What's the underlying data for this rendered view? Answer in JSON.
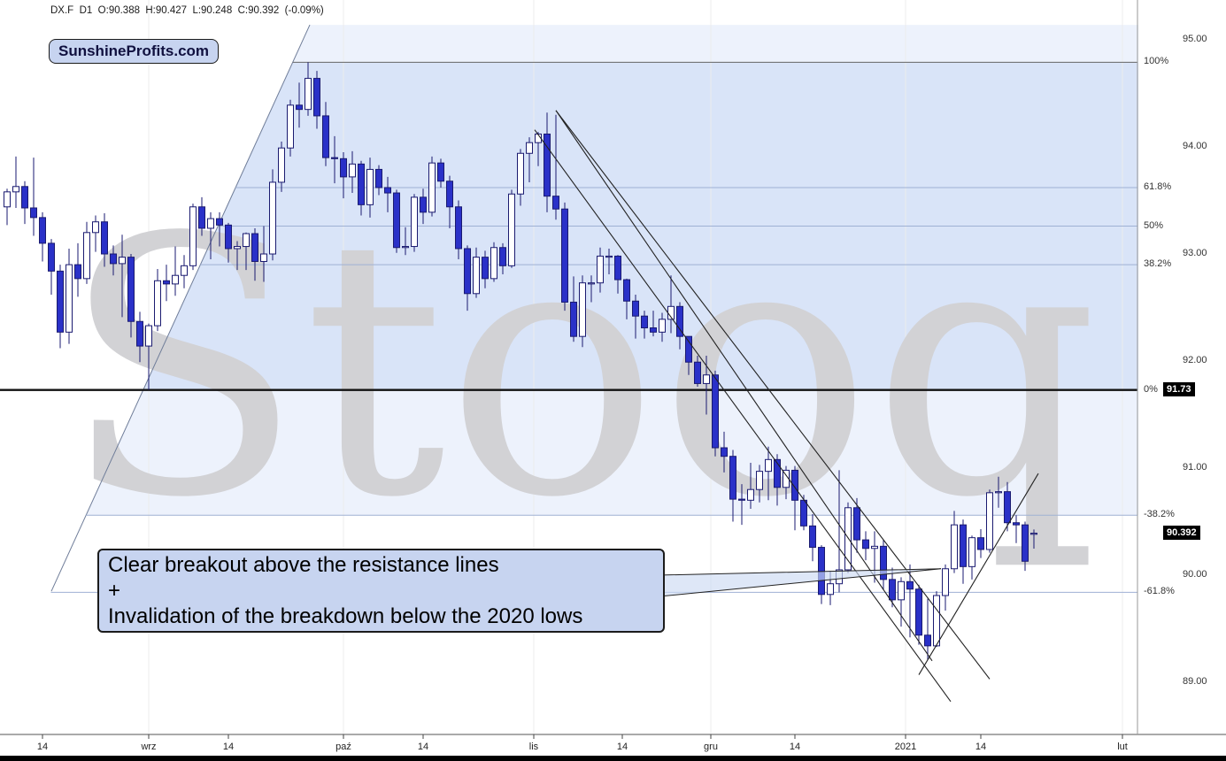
{
  "header": {
    "quote_line": "DX.F  D1  O:90.388  H:90.427  L:90.248  C:90.392  (-0.09%)"
  },
  "logo": {
    "text": "SunshineProfits.com"
  },
  "watermark": {
    "text": "Stooq"
  },
  "callout": {
    "line1": "Clear breakout above the resistance lines",
    "line2": "+",
    "line3": "Invalidation of the breakdown below the 2020 lows"
  },
  "y_axis": {
    "labels": [
      {
        "text": "95.00",
        "price": 95.0
      },
      {
        "text": "94.00",
        "price": 94.0
      },
      {
        "text": "93.00",
        "price": 93.0
      },
      {
        "text": "92.00",
        "price": 92.0
      },
      {
        "text": "91.00",
        "price": 91.0
      },
      {
        "text": "90.00",
        "price": 90.0
      },
      {
        "text": "89.00",
        "price": 89.0
      }
    ]
  },
  "price_badges": [
    {
      "text": "91.73",
      "price": 91.73
    },
    {
      "text": "90.392",
      "price": 90.392
    }
  ],
  "x_axis": {
    "ticks": [
      {
        "label": "14",
        "index": 4,
        "month": false
      },
      {
        "label": "wrz",
        "index": 16,
        "month": true
      },
      {
        "label": "14",
        "index": 25,
        "month": false
      },
      {
        "label": "paź",
        "index": 38,
        "month": true
      },
      {
        "label": "14",
        "index": 47,
        "month": false
      },
      {
        "label": "lis",
        "index": 59.5,
        "month": true
      },
      {
        "label": "14",
        "index": 69.5,
        "month": false
      },
      {
        "label": "gru",
        "index": 79.5,
        "month": true
      },
      {
        "label": "14",
        "index": 89,
        "month": false
      },
      {
        "label": "2021",
        "index": 101.5,
        "month": true
      },
      {
        "label": "14",
        "index": 110,
        "month": false
      },
      {
        "label": "lut",
        "index": 126,
        "month": true
      }
    ]
  },
  "chart_data": {
    "type": "candlestick",
    "symbol": "DX.F",
    "interval": "D1",
    "title": "DX.F US Dollar Index futures, daily candles, Aug 2020 - Jan 2021",
    "last_quote": {
      "open": 90.388,
      "high": 90.427,
      "low": 90.248,
      "close": 90.392,
      "change_pct": -0.09
    },
    "ylim": [
      88.5,
      95.37
    ],
    "colors": {
      "up_fill": "#ffffff",
      "down_fill": "#2a31c8",
      "outline": "#1a1a70",
      "fib_minor": "#9fb1d4",
      "fib_major": "#666666",
      "fib_zero": "#111111",
      "trendline": "#222222",
      "shade": "rgba(140,175,235,0.16)",
      "band": "rgba(130,168,232,0.18)",
      "watermark": "#d2d2d5"
    },
    "fib": {
      "high": 94.79,
      "low": 91.73,
      "levels": [
        {
          "label": "100%",
          "price": 94.79,
          "style": "major"
        },
        {
          "label": "61.8%",
          "price": 93.62,
          "style": "minor"
        },
        {
          "label": "50%",
          "price": 93.26,
          "style": "minor"
        },
        {
          "label": "38.2%",
          "price": 92.9,
          "style": "minor"
        },
        {
          "label": "0%",
          "price": 91.73,
          "style": "zero"
        },
        {
          "label": "-38.2%",
          "price": 90.56,
          "style": "minor"
        },
        {
          "label": "-61.8%",
          "price": 89.84,
          "style": "minor"
        }
      ]
    },
    "support_line": {
      "from": [
        5,
        89.85
      ],
      "to": [
        34.2,
        95.14
      ]
    },
    "shading": [
      {
        "name": "rising-wedge-area",
        "points": [
          [
            5,
            89.85
          ],
          [
            34.2,
            95.14
          ],
          [
            127.8,
            95.14
          ],
          [
            127.8,
            90.56
          ],
          [
            8.92,
            90.56
          ]
        ]
      },
      {
        "name": "fib-retracement-band",
        "points": [
          [
            15.4,
            91.73
          ],
          [
            32.3,
            94.79
          ],
          [
            127.8,
            94.79
          ],
          [
            127.8,
            91.73
          ]
        ]
      }
    ],
    "trendlines": [
      {
        "name": "resistance-line-1",
        "from": [
          59.6,
          94.16
        ],
        "to": [
          106.6,
          88.82
        ]
      },
      {
        "name": "resistance-line-2",
        "from": [
          62,
          94.34
        ],
        "to": [
          111,
          89.03
        ]
      },
      {
        "name": "resistance-line-3",
        "from": [
          62,
          94.34
        ],
        "to": [
          104.5,
          89.2
        ]
      },
      {
        "name": "rising-support-line",
        "from": [
          103,
          89.07
        ],
        "to": [
          116.5,
          90.95
        ]
      }
    ],
    "pointer": {
      "points": [
        [
          73.5,
          90.0
        ],
        [
          105.5,
          90.06
        ],
        [
          73.5,
          89.8
        ]
      ]
    },
    "candles": [
      [
        93.44,
        93.61,
        93.27,
        93.58
      ],
      [
        93.58,
        93.91,
        93.43,
        93.63
      ],
      [
        93.63,
        93.68,
        93.28,
        93.43
      ],
      [
        93.43,
        93.9,
        93.17,
        93.34
      ],
      [
        93.34,
        93.39,
        92.93,
        93.1
      ],
      [
        93.1,
        93.14,
        92.62,
        92.84
      ],
      [
        92.84,
        92.9,
        92.12,
        92.27
      ],
      [
        92.27,
        93.05,
        92.16,
        92.9
      ],
      [
        92.9,
        93.1,
        92.6,
        92.77
      ],
      [
        92.77,
        93.3,
        92.72,
        93.2
      ],
      [
        93.2,
        93.36,
        93.02,
        93.3
      ],
      [
        93.3,
        93.38,
        92.88,
        93.0
      ],
      [
        93.0,
        93.08,
        92.8,
        92.91
      ],
      [
        92.91,
        93.18,
        92.41,
        92.97
      ],
      [
        92.97,
        93.0,
        92.22,
        92.37
      ],
      [
        92.37,
        92.46,
        91.99,
        92.14
      ],
      [
        92.14,
        92.35,
        91.73,
        92.33
      ],
      [
        92.33,
        92.86,
        92.28,
        92.75
      ],
      [
        92.75,
        92.9,
        92.56,
        92.72
      ],
      [
        92.72,
        93.07,
        92.61,
        92.8
      ],
      [
        92.8,
        92.99,
        92.68,
        92.89
      ],
      [
        92.89,
        93.47,
        92.85,
        93.44
      ],
      [
        93.44,
        93.53,
        93.17,
        93.24
      ],
      [
        93.24,
        93.39,
        92.95,
        93.33
      ],
      [
        93.33,
        93.39,
        93.07,
        93.27
      ],
      [
        93.27,
        93.29,
        92.92,
        93.05
      ],
      [
        93.05,
        93.12,
        92.85,
        93.07
      ],
      [
        93.07,
        93.2,
        92.85,
        93.19
      ],
      [
        93.19,
        93.24,
        92.75,
        92.93
      ],
      [
        92.93,
        93.26,
        92.74,
        93.0
      ],
      [
        93.0,
        93.79,
        92.94,
        93.67
      ],
      [
        93.67,
        94.05,
        93.58,
        93.99
      ],
      [
        93.99,
        94.44,
        93.91,
        94.39
      ],
      [
        94.39,
        94.6,
        94.18,
        94.35
      ],
      [
        94.35,
        94.79,
        94.29,
        94.64
      ],
      [
        94.64,
        94.71,
        94.17,
        94.29
      ],
      [
        94.29,
        94.42,
        93.82,
        93.9
      ],
      [
        93.9,
        94.1,
        93.66,
        93.89
      ],
      [
        93.89,
        93.95,
        93.52,
        93.72
      ],
      [
        93.72,
        93.96,
        93.57,
        93.84
      ],
      [
        93.84,
        93.87,
        93.36,
        93.46
      ],
      [
        93.46,
        93.9,
        93.34,
        93.79
      ],
      [
        93.79,
        93.83,
        93.55,
        93.62
      ],
      [
        93.62,
        93.72,
        93.39,
        93.57
      ],
      [
        93.57,
        93.6,
        93.01,
        93.06
      ],
      [
        93.06,
        93.25,
        92.99,
        93.07
      ],
      [
        93.07,
        93.56,
        93.02,
        93.53
      ],
      [
        93.53,
        93.61,
        93.28,
        93.39
      ],
      [
        93.39,
        93.91,
        93.35,
        93.85
      ],
      [
        93.85,
        93.89,
        93.62,
        93.68
      ],
      [
        93.68,
        93.73,
        93.24,
        93.44
      ],
      [
        93.44,
        93.5,
        92.95,
        93.05
      ],
      [
        93.05,
        93.08,
        92.47,
        92.63
      ],
      [
        92.63,
        93.06,
        92.59,
        92.97
      ],
      [
        92.97,
        93.03,
        92.68,
        92.77
      ],
      [
        92.77,
        93.11,
        92.74,
        93.06
      ],
      [
        93.06,
        93.1,
        92.81,
        92.89
      ],
      [
        92.89,
        93.6,
        92.87,
        93.56
      ],
      [
        93.56,
        93.98,
        93.45,
        93.94
      ],
      [
        93.94,
        94.09,
        93.67,
        94.04
      ],
      [
        94.04,
        94.14,
        93.82,
        94.12
      ],
      [
        94.12,
        94.32,
        93.39,
        93.54
      ],
      [
        93.54,
        94.3,
        93.32,
        93.42
      ],
      [
        93.42,
        93.48,
        92.47,
        92.55
      ],
      [
        92.55,
        92.79,
        92.18,
        92.23
      ],
      [
        92.23,
        92.8,
        92.13,
        92.73
      ],
      [
        92.73,
        92.8,
        92.55,
        92.73
      ],
      [
        92.73,
        93.06,
        92.64,
        92.98
      ],
      [
        92.98,
        93.05,
        92.81,
        92.98
      ],
      [
        92.98,
        92.99,
        92.63,
        92.76
      ],
      [
        92.76,
        92.77,
        92.39,
        92.56
      ],
      [
        92.56,
        92.62,
        92.21,
        92.42
      ],
      [
        92.42,
        92.47,
        92.21,
        92.31
      ],
      [
        92.31,
        92.47,
        92.23,
        92.27
      ],
      [
        92.27,
        92.45,
        92.18,
        92.39
      ],
      [
        92.39,
        92.8,
        92.26,
        92.51
      ],
      [
        92.51,
        92.55,
        92.11,
        92.23
      ],
      [
        92.23,
        92.23,
        91.87,
        91.99
      ],
      [
        91.99,
        92.05,
        91.76,
        91.79
      ],
      [
        91.79,
        92.05,
        91.5,
        91.87
      ],
      [
        91.87,
        91.91,
        91.11,
        91.19
      ],
      [
        91.19,
        91.34,
        90.96,
        91.11
      ],
      [
        91.11,
        91.17,
        90.5,
        90.71
      ],
      [
        90.71,
        90.85,
        90.47,
        90.7
      ],
      [
        90.7,
        91.05,
        90.62,
        90.8
      ],
      [
        90.8,
        91.03,
        90.68,
        90.97
      ],
      [
        90.97,
        91.2,
        90.7,
        91.08
      ],
      [
        91.08,
        91.13,
        90.65,
        90.82
      ],
      [
        90.82,
        91.02,
        90.71,
        90.98
      ],
      [
        90.98,
        91.02,
        90.42,
        90.7
      ],
      [
        90.7,
        90.75,
        90.42,
        90.46
      ],
      [
        90.46,
        90.57,
        90.13,
        90.26
      ],
      [
        90.26,
        90.28,
        89.73,
        89.82
      ],
      [
        89.82,
        90.04,
        89.72,
        89.92
      ],
      [
        89.92,
        90.98,
        89.84,
        90.05
      ],
      [
        90.05,
        90.68,
        90.02,
        90.63
      ],
      [
        90.63,
        90.72,
        90.21,
        90.33
      ],
      [
        90.33,
        90.41,
        90.14,
        90.25
      ],
      [
        90.25,
        90.41,
        89.93,
        90.27
      ],
      [
        90.27,
        90.33,
        89.86,
        89.96
      ],
      [
        89.96,
        90.07,
        89.7,
        89.77
      ],
      [
        89.77,
        89.98,
        89.52,
        89.94
      ],
      [
        89.94,
        90.1,
        89.42,
        89.87
      ],
      [
        89.87,
        89.91,
        89.35,
        89.44
      ],
      [
        89.44,
        89.78,
        89.21,
        89.34
      ],
      [
        89.34,
        89.85,
        89.33,
        89.81
      ],
      [
        89.81,
        90.1,
        89.67,
        90.06
      ],
      [
        90.06,
        90.6,
        90.02,
        90.47
      ],
      [
        90.47,
        90.52,
        89.92,
        90.08
      ],
      [
        90.08,
        90.37,
        89.96,
        90.35
      ],
      [
        90.35,
        90.43,
        90.16,
        90.24
      ],
      [
        90.24,
        90.8,
        90.21,
        90.77
      ],
      [
        90.77,
        90.92,
        90.63,
        90.78
      ],
      [
        90.78,
        90.87,
        90.41,
        90.49
      ],
      [
        90.49,
        90.56,
        90.3,
        90.47
      ],
      [
        90.47,
        90.5,
        90.04,
        90.13
      ],
      [
        90.388,
        90.427,
        90.248,
        90.392
      ]
    ]
  }
}
